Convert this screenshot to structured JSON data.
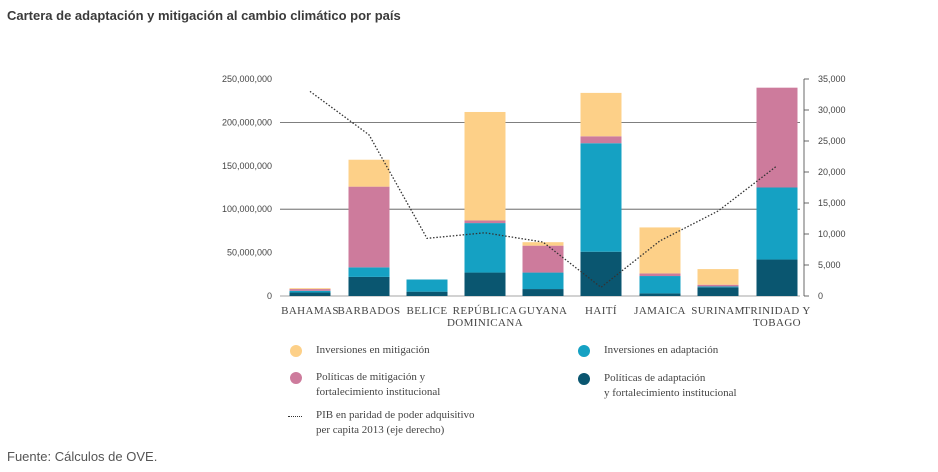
{
  "title": "Cartera de adaptación y mitigación al cambio climático por país",
  "source": "Fuente: Cálculos de OVE.",
  "colors": {
    "mitigacion": "#fdd088",
    "adaptacion": "#15a1c3",
    "politicas_mitigacion": "#cd7b9c",
    "politicas_adaptacion": "#0a5670",
    "pib_line": "#333333",
    "grid": "#555555"
  },
  "legend": [
    {
      "key": "mitigacion",
      "label": "Inversiones en mitigación",
      "type": "dot"
    },
    {
      "key": "adaptacion",
      "label": "Inversiones en adaptación",
      "type": "dot"
    },
    {
      "key": "politicas_mitigacion",
      "label": "Políticas de mitigación y\nfortalecimiento institucional",
      "type": "dot"
    },
    {
      "key": "politicas_adaptacion",
      "label": "Políticas de adaptación\ny fortalecimiento institucional",
      "type": "dot"
    },
    {
      "key": "pib_line",
      "label": "PIB en paridad de poder adquisitivo\nper capita 2013 (eje derecho)",
      "type": "line"
    }
  ],
  "chart_data": {
    "type": "bar",
    "stacked": true,
    "title": "Cartera de adaptación y mitigación al cambio climático por país",
    "categories": [
      "BAHAMAS",
      "BARBADOS",
      "BELICE",
      "REPÚBLICA\nDOMINICANA",
      "GUYANA",
      "HAITÍ",
      "JAMAICA",
      "SURINAM",
      "TRINIDAD Y\nTOBAGO"
    ],
    "series": [
      {
        "name": "Políticas de adaptación y fortalecimiento institucional",
        "key": "politicas_adaptacion",
        "values": [
          4000000,
          22000000,
          5000000,
          27000000,
          8000000,
          51000000,
          3000000,
          10000000,
          42000000
        ]
      },
      {
        "name": "Inversiones en adaptación",
        "key": "adaptacion",
        "values": [
          2000000,
          11000000,
          14000000,
          57000000,
          19000000,
          125000000,
          20000000,
          1000000,
          83000000
        ]
      },
      {
        "name": "Políticas de mitigación y fortalecimiento institucional",
        "key": "politicas_mitigacion",
        "values": [
          2000000,
          93000000,
          0,
          3000000,
          31000000,
          8000000,
          3000000,
          2000000,
          115000000
        ]
      },
      {
        "name": "Inversiones en mitigación",
        "key": "mitigacion",
        "values": [
          1000000,
          31000000,
          0,
          125000000,
          4000000,
          50000000,
          53000000,
          18000000,
          0
        ]
      }
    ],
    "line_series": {
      "name": "PIB en paridad de poder adquisitivo per capita 2013 (eje derecho)",
      "key": "pib_line",
      "values": [
        33000,
        26000,
        9300,
        10200,
        8700,
        1400,
        8900,
        13700,
        21000
      ]
    },
    "ylim": [
      0,
      250000000
    ],
    "yticks": [
      0,
      50000000,
      100000000,
      150000000,
      200000000,
      250000000
    ],
    "ytick_labels": [
      "0",
      "50,000,000",
      "100,000,000",
      "150,000,000",
      "200,000,000",
      "250,000,000"
    ],
    "y2lim": [
      0,
      35000
    ],
    "y2ticks": [
      0,
      5000,
      10000,
      15000,
      20000,
      25000,
      30000,
      35000
    ],
    "y2tick_labels": [
      "0",
      "5,000",
      "10,000",
      "15,000",
      "20,000",
      "25,000",
      "30,000",
      "35,000"
    ],
    "gridlines": [
      100000000,
      200000000
    ],
    "legend_position": "bottom"
  }
}
